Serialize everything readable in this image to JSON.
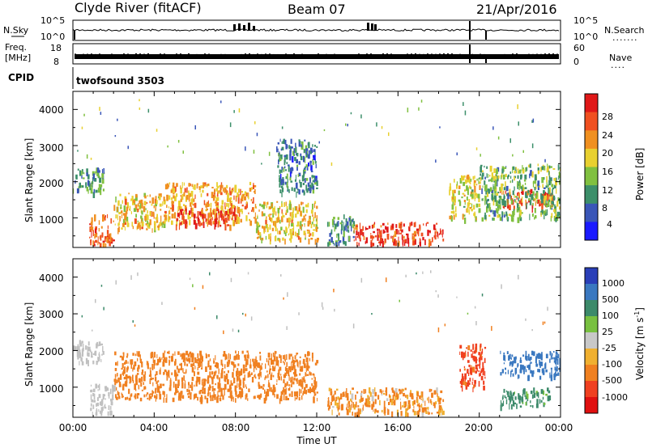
{
  "header": {
    "station": "Clyde River (fitACF)",
    "beam": "Beam 07",
    "date": "21/Apr/2016"
  },
  "time_axis": {
    "label": "Time UT",
    "ticks": [
      "00:00",
      "04:00",
      "08:00",
      "12:00",
      "16:00",
      "20:00",
      "00:00"
    ]
  },
  "top_panels": {
    "nsky": {
      "left_label": "N.Sky",
      "right_label": "N.Search",
      "left_ticks": [
        "10^5",
        "10^0"
      ],
      "right_ticks": [
        "10^5",
        "10^0"
      ],
      "right_legend_dots": "......."
    },
    "freq": {
      "left_label_line1": "Freq.",
      "left_label_line2": "[MHz]",
      "right_label": "Nave",
      "left_ticks": [
        "18",
        "8"
      ],
      "right_ticks": [
        "60",
        "0"
      ],
      "right_legend_dots": "...."
    },
    "cpid": {
      "label": "CPID",
      "value": "twofsound 3503"
    }
  },
  "power_panel": {
    "ylabel": "Slant Range [km]",
    "yticks": [
      "4000",
      "3000",
      "2000",
      "1000"
    ],
    "colorbar_label": "Power [dB]",
    "colorbar_ticks": [
      "28",
      "24",
      "20",
      "16",
      "12",
      "8",
      "4"
    ],
    "colors": [
      "#1a1aff",
      "#3a56b8",
      "#3c8f6a",
      "#80c040",
      "#e8d030",
      "#f09020",
      "#f05020",
      "#e01818"
    ]
  },
  "velocity_panel": {
    "ylabel": "Slant Range [km]",
    "yticks": [
      "4000",
      "3000",
      "2000",
      "1000"
    ],
    "colorbar_label": "Velocity [m s",
    "colorbar_label_sup": "-1",
    "colorbar_label_end": "]",
    "colorbar_ticks": [
      "1000",
      "500",
      "100",
      "25",
      "-25",
      "-100",
      "-500",
      "-1000"
    ],
    "colors": [
      "#2a3fb8",
      "#3a78c0",
      "#3c8a6a",
      "#78c040",
      "#c8c8c8",
      "#f0b030",
      "#f08020",
      "#f04020",
      "#e01010"
    ],
    "ground_scatter_color": "#c0c0c0"
  },
  "chart_data": [
    {
      "type": "line",
      "title": "Clyde River (fitACF)  Beam 07  21/Apr/2016",
      "xlabel": "",
      "ylabel": "N.Sky",
      "y2label": "N.Search",
      "x_range": [
        "00:00",
        "24:00"
      ],
      "ylim": [
        1,
        100000
      ],
      "y_scale": "log",
      "series": [
        {
          "name": "N.Sky",
          "x": [
            0,
            6,
            8,
            12,
            14.8,
            18,
            20,
            24
          ],
          "y": [
            1000,
            1000,
            3000,
            1000,
            5000,
            1000,
            1000,
            1000
          ]
        }
      ]
    },
    {
      "type": "line",
      "ylabel": "Freq. [MHz]",
      "y2label": "Nave",
      "x_range": [
        "00:00",
        "24:00"
      ],
      "ylim": [
        8,
        18
      ],
      "series": [
        {
          "name": "Freq.",
          "x": [
            0,
            24
          ],
          "y": [
            10.5,
            10.5
          ]
        }
      ]
    },
    {
      "type": "heatmap",
      "title": "",
      "xlabel": "Time UT",
      "ylabel": "Slant Range [km]",
      "x_range": [
        "00:00",
        "24:00"
      ],
      "ylim": [
        180,
        4500
      ],
      "colorbar": {
        "label": "Power [dB]",
        "range": [
          0,
          30
        ],
        "ticks": [
          4,
          8,
          12,
          16,
          20,
          24,
          28
        ]
      },
      "regions": [
        {
          "t0": 0.0,
          "t1": 1.5,
          "r0": 1700,
          "r1": 2400,
          "value": 10
        },
        {
          "t0": 0.8,
          "t1": 2.0,
          "r0": 250,
          "r1": 1100,
          "value": 24
        },
        {
          "t0": 2.0,
          "t1": 4.5,
          "r0": 700,
          "r1": 1700,
          "value": 18
        },
        {
          "t0": 4.5,
          "t1": 9.0,
          "r0": 900,
          "r1": 2000,
          "value": 20
        },
        {
          "t0": 5.0,
          "t1": 8.0,
          "r0": 800,
          "r1": 1300,
          "value": 26
        },
        {
          "t0": 9.0,
          "t1": 12.0,
          "r0": 400,
          "r1": 1500,
          "value": 18
        },
        {
          "t0": 10.0,
          "t1": 12.0,
          "r0": 1700,
          "r1": 3200,
          "value": 8
        },
        {
          "t0": 12.5,
          "t1": 13.8,
          "r0": 300,
          "r1": 1100,
          "value": 10
        },
        {
          "t0": 13.8,
          "t1": 18.2,
          "r0": 300,
          "r1": 900,
          "value": 26
        },
        {
          "t0": 18.5,
          "t1": 20.0,
          "r0": 1000,
          "r1": 2200,
          "value": 16
        },
        {
          "t0": 21.0,
          "t1": 23.6,
          "r0": 1300,
          "r1": 1800,
          "value": 26
        },
        {
          "t0": 20.0,
          "t1": 24.0,
          "r0": 1000,
          "r1": 2500,
          "value": 12
        }
      ]
    },
    {
      "type": "heatmap",
      "title": "",
      "xlabel": "Time UT",
      "ylabel": "Slant Range [km]",
      "x_range": [
        "00:00",
        "24:00"
      ],
      "ylim": [
        180,
        4500
      ],
      "colorbar": {
        "label": "Velocity [m s-1]",
        "ticks": [
          1000,
          500,
          100,
          25,
          -25,
          -100,
          -500,
          -1000
        ]
      },
      "regions": [
        {
          "t0": 0.0,
          "t1": 1.5,
          "r0": 1700,
          "r1": 2300,
          "value": 0,
          "ground_scatter": true
        },
        {
          "t0": 0.8,
          "t1": 2.0,
          "r0": 300,
          "r1": 1100,
          "value": 0,
          "ground_scatter": true
        },
        {
          "t0": 2.0,
          "t1": 12.0,
          "r0": 700,
          "r1": 2000,
          "value": -300
        },
        {
          "t0": 12.5,
          "t1": 18.2,
          "r0": 300,
          "r1": 1000,
          "value": -150
        },
        {
          "t0": 19.0,
          "t1": 20.3,
          "r0": 1000,
          "r1": 2200,
          "value": -600
        },
        {
          "t0": 21.0,
          "t1": 24.0,
          "r0": 1300,
          "r1": 2000,
          "value": 700
        },
        {
          "t0": 21.0,
          "t1": 23.5,
          "r0": 500,
          "r1": 1000,
          "value": 200
        }
      ]
    }
  ]
}
